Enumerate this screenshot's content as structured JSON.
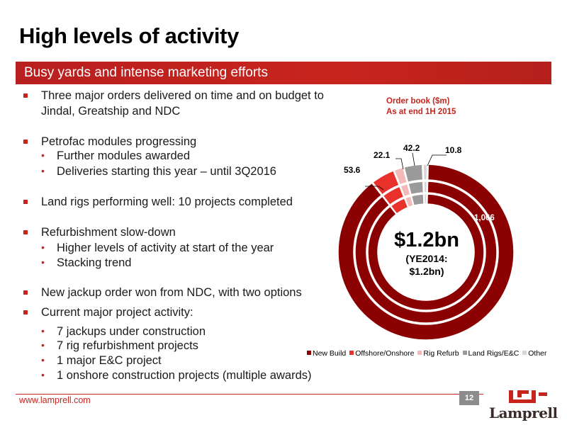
{
  "slide": {
    "title": "High levels of activity",
    "banner": "Busy yards and intense marketing efforts",
    "bullets": {
      "b1_l1": "Three major orders delivered on time and on budget to",
      "b1_l2": "Jindal, Greatship and NDC",
      "b2": "Petrofac modules progressing",
      "b2_s1": "Further modules awarded",
      "b2_s2": "Deliveries starting this year – until 3Q2016",
      "b3": "Land rigs performing well: 10 projects completed",
      "b4": "Refurbishment slow-down",
      "b4_s1": "Higher levels of activity at start of the year",
      "b4_s2": "Stacking trend",
      "b5": "New jackup order won from NDC, with two options",
      "b6": "Current major project activity:",
      "b6_s1": "7 jackups under construction",
      "b6_s2": "7 rig refurbishment projects",
      "b6_s3": "1 major E&C project",
      "b6_s4": "1 onshore construction projects (multiple awards)"
    },
    "footer": {
      "url": "www.lamprell.com",
      "page": "12",
      "logo_text": "Lamprell"
    }
  },
  "chart_data": {
    "type": "pie",
    "style": "donut",
    "title_line1": "Order book ($m)",
    "title_line2": "As at end 1H 2015",
    "center_main": "$1.2bn",
    "center_sub1": "(YE2014:",
    "center_sub2": "$1.2bn)",
    "categories": [
      "New Build",
      "Offshore/Onshore",
      "Rig Refurb",
      "Land Rigs/E&C",
      "Other"
    ],
    "values": [
      1066,
      53.6,
      22.1,
      42.2,
      10.8
    ],
    "labels": [
      "1,066",
      "53.6",
      "22.1",
      "42.2",
      "10.8"
    ],
    "colors": [
      "#8b0000",
      "#e8312a",
      "#f5b8b8",
      "#9a9a9a",
      "#d6d6d6"
    ],
    "legend_position": "bottom"
  }
}
